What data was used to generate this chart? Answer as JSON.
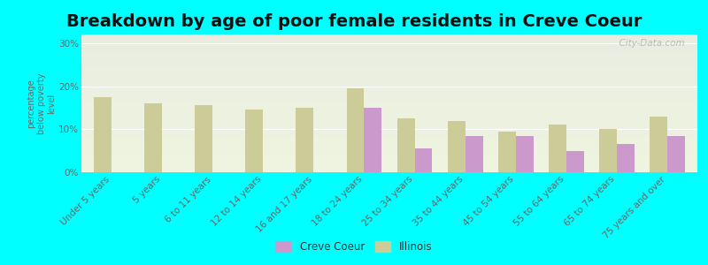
{
  "title": "Breakdown by age of poor female residents in Creve Coeur",
  "ylabel": "percentage\nbelow poverty\nlevel",
  "categories": [
    "Under 5 years",
    "5 years",
    "6 to 11 years",
    "12 to 14 years",
    "16 and 17 years",
    "18 to 24 years",
    "25 to 34 years",
    "35 to 44 years",
    "45 to 54 years",
    "55 to 64 years",
    "65 to 74 years",
    "75 years and over"
  ],
  "creve_coeur": [
    0,
    0,
    0,
    0,
    0,
    15.0,
    5.5,
    8.5,
    8.5,
    5.0,
    6.5,
    8.5
  ],
  "illinois": [
    17.5,
    16.0,
    15.5,
    14.5,
    15.0,
    19.5,
    12.5,
    12.0,
    9.5,
    11.0,
    10.0,
    13.0
  ],
  "creve_coeur_color": "#cc99cc",
  "illinois_color": "#cccc99",
  "background_color": "#00ffff",
  "grad_top": "#e8ede0",
  "grad_bottom": "#f0f5e0",
  "ylim": [
    0,
    32
  ],
  "yticks": [
    0,
    10,
    20,
    30
  ],
  "ytick_labels": [
    "0%",
    "10%",
    "20%",
    "30%"
  ],
  "title_fontsize": 14,
  "axis_label_fontsize": 7,
  "tick_fontsize": 7.5,
  "bar_width": 0.35,
  "watermark": "  City-Data.com"
}
